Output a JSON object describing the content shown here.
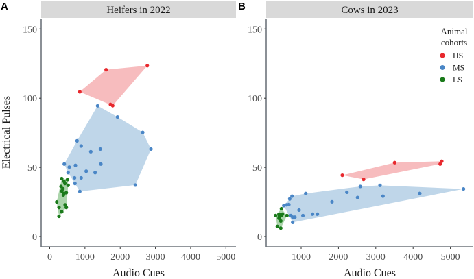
{
  "chart_data": [
    {
      "type": "scatter",
      "panel_letter": "A",
      "title": "Heifers in 2022",
      "xlabel": "Audio Cues",
      "ylabel": "Electrical Pulses",
      "xlim": [
        -250,
        5300
      ],
      "ylim": [
        -8,
        157
      ],
      "xticks": [
        0,
        1000,
        2000,
        3000,
        4000,
        5000
      ],
      "xtick_labels": [
        "0",
        "1000",
        "2000",
        "3000",
        "4000",
        "5000"
      ],
      "yticks": [
        0,
        50,
        100,
        150
      ],
      "ytick_labels": [
        "0",
        "50",
        "100",
        "150"
      ],
      "hull": true,
      "series": [
        {
          "name": "HS",
          "points": [
            [
              853,
              104.6
            ],
            [
              1600,
              120.6
            ],
            [
              2769,
              123.5
            ],
            [
              1723,
              95.5
            ],
            [
              1787,
              94.6
            ]
          ]
        },
        {
          "name": "MS",
          "points": [
            [
              1359,
              94.5
            ],
            [
              1924,
              86.4
            ],
            [
              2639,
              75.3
            ],
            [
              2873,
              63.2
            ],
            [
              2431,
              37.2
            ],
            [
              775,
              69.2
            ],
            [
              892,
              65.4
            ],
            [
              1165,
              61.3
            ],
            [
              1438,
              63.2
            ],
            [
              413,
              52.4
            ],
            [
              555,
              50.2
            ],
            [
              730,
              51.4
            ],
            [
              1450,
              52.4
            ],
            [
              522,
              46.2
            ],
            [
              1035,
              47.2
            ],
            [
              1288,
              46.2
            ],
            [
              705,
              42.4
            ],
            [
              892,
              42.4
            ],
            [
              716,
              38.3
            ],
            [
              853,
              32.6
            ]
          ]
        },
        {
          "name": "LS",
          "points": [
            [
              341,
              41.9
            ],
            [
              405,
              39.9
            ],
            [
              502,
              41.1
            ],
            [
              432,
              38.3
            ],
            [
              522,
              37.0
            ],
            [
              321,
              36.2
            ],
            [
              374,
              34.5
            ],
            [
              341,
              32.9
            ],
            [
              405,
              31.2
            ],
            [
              471,
              31.7
            ],
            [
              386,
              30.0
            ],
            [
              199,
              25.0
            ],
            [
              438,
              22.9
            ],
            [
              263,
              21.0
            ],
            [
              471,
              21.0
            ],
            [
              341,
              17.9
            ],
            [
              263,
              14.6
            ]
          ]
        }
      ]
    },
    {
      "type": "scatter",
      "panel_letter": "B",
      "title": "Cows in 2023",
      "xlabel": "Audio Cues",
      "ylabel": "",
      "xlim": [
        50,
        5600
      ],
      "ylim": [
        -8,
        157
      ],
      "xticks": [
        1000,
        2000,
        3000,
        4000,
        5000
      ],
      "xtick_labels": [
        "1000",
        "2000",
        "3000",
        "4000",
        "5000"
      ],
      "yticks": [
        0,
        50,
        100,
        150
      ],
      "ytick_labels": [
        "0",
        "50",
        "100",
        "150"
      ],
      "hull": true,
      "series": [
        {
          "name": "HS",
          "points": [
            [
              2103,
              44.3
            ],
            [
              2673,
              41.3
            ],
            [
              3506,
              53.4
            ],
            [
              4726,
              52.4
            ],
            [
              4768,
              54.4
            ]
          ]
        },
        {
          "name": "MS",
          "points": [
            [
              756,
              29.2
            ],
            [
              694,
              27.2
            ],
            [
              1123,
              31.1
            ],
            [
              535,
              22.3
            ],
            [
              609,
              22.9
            ],
            [
              670,
              23.1
            ],
            [
              1827,
              25.1
            ],
            [
              944,
              19.1
            ],
            [
              724,
              15.2
            ],
            [
              773,
              14.0
            ],
            [
              833,
              14.0
            ],
            [
              1048,
              15.2
            ],
            [
              1305,
              16.2
            ],
            [
              1434,
              16.2
            ],
            [
              773,
              10.2
            ],
            [
              2226,
              32.0
            ],
            [
              2586,
              36.2
            ],
            [
              3114,
              37.0
            ],
            [
              2513,
              28.2
            ],
            [
              3193,
              29.2
            ],
            [
              4180,
              31.2
            ],
            [
              5350,
              34.4
            ]
          ]
        },
        {
          "name": "LS",
          "points": [
            [
              472,
              20.1
            ],
            [
              406,
              16.2
            ],
            [
              498,
              16.2
            ],
            [
              314,
              15.2
            ],
            [
              620,
              15.2
            ],
            [
              406,
              13.2
            ],
            [
              454,
              11.2
            ],
            [
              362,
              7.3
            ],
            [
              454,
              6.1
            ],
            [
              467,
              15.2
            ],
            [
              417,
              14.7
            ]
          ]
        }
      ]
    }
  ],
  "legend": {
    "title_line1": "Animal",
    "title_line2": "cohorts",
    "placement": "top-right",
    "items": [
      {
        "label": "HS",
        "color": "#e41a1c"
      },
      {
        "label": "MS",
        "color": "#4a86c6"
      },
      {
        "label": "LS",
        "color": "#1a7a1a"
      }
    ]
  },
  "colors": {
    "HS": {
      "point": "#e8282d",
      "fill": "#f4a6a8"
    },
    "MS": {
      "point": "#4a86c6",
      "fill": "#a9c8e2"
    },
    "LS": {
      "point": "#1a7a1a",
      "fill": "#8ec68e"
    },
    "strip": "#d9d9d9",
    "axis": "#6e757c"
  }
}
